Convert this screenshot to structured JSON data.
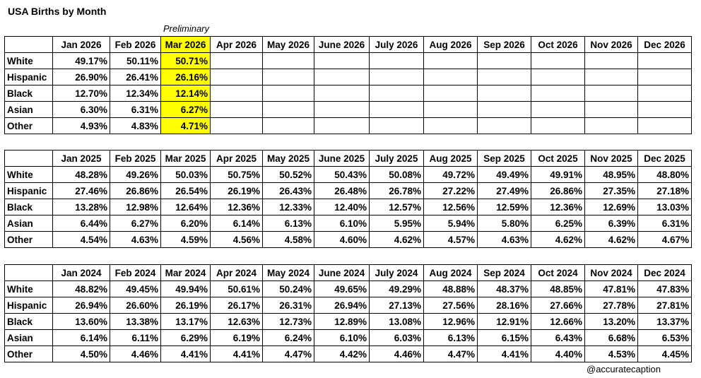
{
  "title": "USA Births by Month",
  "preliminary_note": "Preliminary",
  "highlight_color": "#ffff00",
  "row_labels": [
    "White",
    "Hispanic",
    "Black",
    "Asian",
    "Other"
  ],
  "tables": [
    {
      "year": "2026",
      "months": [
        "Jan 2026",
        "Feb 2026",
        "Mar 2026",
        "Apr 2026",
        "May 2026",
        "June 2026",
        "July 2026",
        "Aug 2026",
        "Sep 2026",
        "Oct 2026",
        "Nov 2026",
        "Dec 2026"
      ],
      "highlight_column": 2,
      "rows": [
        [
          "49.17%",
          "50.11%",
          "50.71%",
          "",
          "",
          "",
          "",
          "",
          "",
          "",
          "",
          ""
        ],
        [
          "26.90%",
          "26.41%",
          "26.16%",
          "",
          "",
          "",
          "",
          "",
          "",
          "",
          "",
          ""
        ],
        [
          "12.70%",
          "12.34%",
          "12.14%",
          "",
          "",
          "",
          "",
          "",
          "",
          "",
          "",
          ""
        ],
        [
          "6.30%",
          "6.31%",
          "6.27%",
          "",
          "",
          "",
          "",
          "",
          "",
          "",
          "",
          ""
        ],
        [
          "4.93%",
          "4.83%",
          "4.71%",
          "",
          "",
          "",
          "",
          "",
          "",
          "",
          "",
          ""
        ]
      ]
    },
    {
      "year": "2025",
      "months": [
        "Jan 2025",
        "Feb 2025",
        "Mar 2025",
        "Apr 2025",
        "May 2025",
        "June 2025",
        "July 2025",
        "Aug 2025",
        "Sep 2025",
        "Oct 2025",
        "Nov 2025",
        "Dec 2025"
      ],
      "highlight_column": null,
      "rows": [
        [
          "48.28%",
          "49.26%",
          "50.03%",
          "50.75%",
          "50.52%",
          "50.43%",
          "50.08%",
          "49.72%",
          "49.49%",
          "49.91%",
          "48.95%",
          "48.80%"
        ],
        [
          "27.46%",
          "26.86%",
          "26.54%",
          "26.19%",
          "26.43%",
          "26.48%",
          "26.78%",
          "27.22%",
          "27.49%",
          "26.86%",
          "27.35%",
          "27.18%"
        ],
        [
          "13.28%",
          "12.98%",
          "12.64%",
          "12.36%",
          "12.33%",
          "12.40%",
          "12.57%",
          "12.56%",
          "12.59%",
          "12.36%",
          "12.69%",
          "13.03%"
        ],
        [
          "6.44%",
          "6.27%",
          "6.20%",
          "6.14%",
          "6.13%",
          "6.10%",
          "5.95%",
          "5.94%",
          "5.80%",
          "6.25%",
          "6.39%",
          "6.31%"
        ],
        [
          "4.54%",
          "4.63%",
          "4.59%",
          "4.56%",
          "4.58%",
          "4.60%",
          "4.62%",
          "4.57%",
          "4.63%",
          "4.62%",
          "4.62%",
          "4.67%"
        ]
      ]
    },
    {
      "year": "2024",
      "months": [
        "Jan 2024",
        "Feb 2024",
        "Mar 2024",
        "Apr 2024",
        "May 2024",
        "June 2024",
        "July 2024",
        "Aug 2024",
        "Sep 2024",
        "Oct 2024",
        "Nov 2024",
        "Dec 2024"
      ],
      "highlight_column": null,
      "rows": [
        [
          "48.82%",
          "49.45%",
          "49.94%",
          "50.61%",
          "50.24%",
          "49.65%",
          "49.29%",
          "48.88%",
          "48.37%",
          "48.85%",
          "47.81%",
          "47.83%"
        ],
        [
          "26.94%",
          "26.60%",
          "26.19%",
          "26.17%",
          "26.31%",
          "26.94%",
          "27.13%",
          "27.56%",
          "28.16%",
          "27.66%",
          "27.78%",
          "27.81%"
        ],
        [
          "13.60%",
          "13.38%",
          "13.17%",
          "12.63%",
          "12.73%",
          "12.89%",
          "13.08%",
          "12.96%",
          "12.91%",
          "12.66%",
          "13.20%",
          "13.37%"
        ],
        [
          "6.14%",
          "6.11%",
          "6.29%",
          "6.19%",
          "6.24%",
          "6.10%",
          "6.03%",
          "6.13%",
          "6.15%",
          "6.43%",
          "6.68%",
          "6.53%"
        ],
        [
          "4.50%",
          "4.46%",
          "4.41%",
          "4.41%",
          "4.47%",
          "4.42%",
          "4.46%",
          "4.47%",
          "4.41%",
          "4.40%",
          "4.53%",
          "4.45%"
        ]
      ]
    }
  ],
  "credit": "@accuratecaption"
}
